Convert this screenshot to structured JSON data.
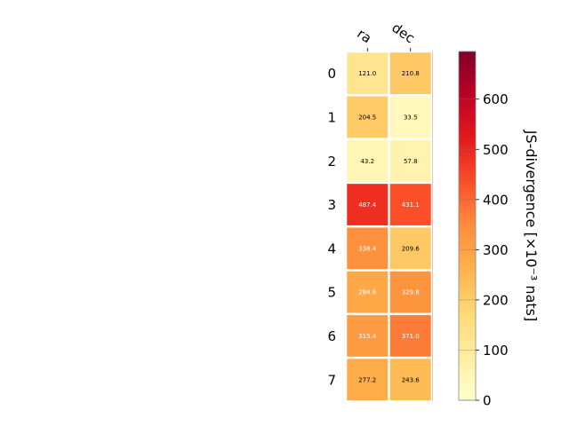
{
  "chart_data": {
    "type": "heatmap",
    "columns": [
      "ra",
      "dec"
    ],
    "rows": [
      "0",
      "1",
      "2",
      "3",
      "4",
      "5",
      "6",
      "7"
    ],
    "values": [
      [
        121.0,
        210.8
      ],
      [
        204.5,
        33.5
      ],
      [
        43.2,
        57.8
      ],
      [
        487.4,
        431.1
      ],
      [
        338.4,
        209.6
      ],
      [
        284.6,
        329.8
      ],
      [
        315.4,
        371.0
      ],
      [
        277.2,
        243.6
      ]
    ],
    "cell_labels": [
      [
        "121.0",
        "210.8"
      ],
      [
        "204.5",
        "33.5"
      ],
      [
        "43.2",
        "57.8"
      ],
      [
        "487.4",
        "431.1"
      ],
      [
        "338.4",
        "209.6"
      ],
      [
        "284.6",
        "329.8"
      ],
      [
        "315.4",
        "371.0"
      ],
      [
        "277.2",
        "243.6"
      ]
    ],
    "colorbar": {
      "label": "JS-divergence [×10⁻³ nats]",
      "min": 0,
      "max": 695,
      "ticks": [
        0,
        100,
        200,
        300,
        400,
        500,
        600
      ],
      "colormap": "YlOrRd"
    }
  }
}
